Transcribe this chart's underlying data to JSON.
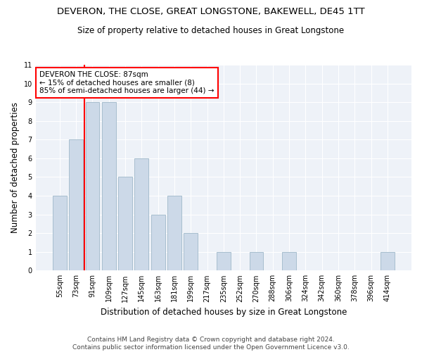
{
  "title": "DEVERON, THE CLOSE, GREAT LONGSTONE, BAKEWELL, DE45 1TT",
  "subtitle": "Size of property relative to detached houses in Great Longstone",
  "xlabel": "Distribution of detached houses by size in Great Longstone",
  "ylabel": "Number of detached properties",
  "categories": [
    "55sqm",
    "73sqm",
    "91sqm",
    "109sqm",
    "127sqm",
    "145sqm",
    "163sqm",
    "181sqm",
    "199sqm",
    "217sqm",
    "235sqm",
    "252sqm",
    "270sqm",
    "288sqm",
    "306sqm",
    "324sqm",
    "342sqm",
    "360sqm",
    "378sqm",
    "396sqm",
    "414sqm"
  ],
  "values": [
    4,
    7,
    9,
    9,
    5,
    6,
    3,
    4,
    2,
    0,
    1,
    0,
    1,
    0,
    1,
    0,
    0,
    0,
    0,
    0,
    1
  ],
  "bar_color": "#ccd9e8",
  "bar_edge_color": "#a8bece",
  "vline_x": 1.5,
  "vline_color": "red",
  "annotation_text": "DEVERON THE CLOSE: 87sqm\n← 15% of detached houses are smaller (8)\n85% of semi-detached houses are larger (44) →",
  "annotation_box_color": "white",
  "annotation_box_edge_color": "red",
  "ylim": [
    0,
    11
  ],
  "yticks": [
    0,
    1,
    2,
    3,
    4,
    5,
    6,
    7,
    8,
    9,
    10,
    11
  ],
  "footer": "Contains HM Land Registry data © Crown copyright and database right 2024.\nContains public sector information licensed under the Open Government Licence v3.0.",
  "title_fontsize": 9.5,
  "subtitle_fontsize": 8.5,
  "xlabel_fontsize": 8.5,
  "ylabel_fontsize": 8.5,
  "tick_fontsize": 7,
  "annotation_fontsize": 7.5,
  "footer_fontsize": 6.5,
  "background_color": "#eef2f8"
}
